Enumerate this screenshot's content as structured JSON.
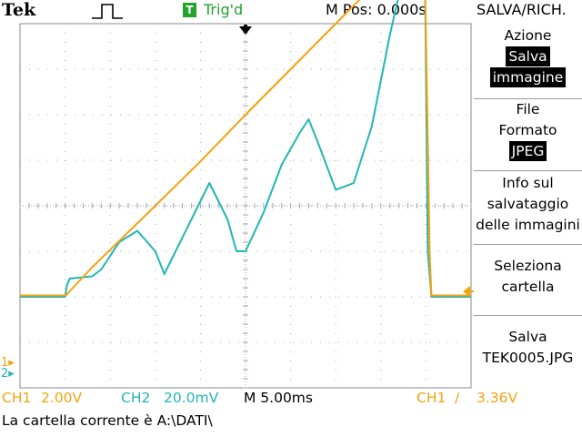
{
  "header": {
    "brand": "Tek",
    "trig_badge": "T",
    "trig_status": "Trig'd",
    "m_pos": "M Pos: 0.000s",
    "menu_title": "SALVA/RICH."
  },
  "menu": {
    "action_label": "Azione",
    "action_value_line1": "Salva",
    "action_value_line2": "immagine",
    "file_label_line1": "File",
    "file_label_line2": "Formato",
    "file_value": "JPEG",
    "info_line1": "Info sul",
    "info_line2": "salvataggio",
    "info_line3": "delle immagini",
    "select_line1": "Seleziona",
    "select_line2": "cartella",
    "save_line1": "Salva",
    "save_line2": "TEK0005.JPG"
  },
  "markers": {
    "ch1": "1",
    "ch2": "2"
  },
  "footer": {
    "ch1_label": "CH1",
    "ch1_scale": "2.00V",
    "ch2_label": "CH2",
    "ch2_scale": "20.0mV",
    "timebase": "M 5.00ms",
    "trigger_source": "CH1",
    "trigger_slope": "/",
    "trigger_level": "3.36V",
    "status": "La cartella corrente è A:\\DATI\\"
  },
  "colors": {
    "ch1": "#f5a20f",
    "ch2": "#22b5b5",
    "trigger": "#22a32e",
    "grid": "#aaaaaa"
  },
  "chart_data": {
    "type": "line",
    "divisions": {
      "x": 10,
      "y": 8
    },
    "xlim": [
      -25,
      25
    ],
    "series": [
      {
        "name": "CH1",
        "x": [
          -25,
          -20,
          -19.8,
          -19.6,
          -17,
          -10,
          -5,
          0,
          5,
          10,
          15,
          19.8,
          20.2,
          20.4,
          20.6,
          25
        ],
        "y": [
          -3.94,
          -3.94,
          -3.9,
          -3.8,
          -2.7,
          0,
          1.95,
          4.0,
          6.0,
          8.0,
          10.0,
          11.95,
          3.0,
          -2.0,
          -3.94,
          -3.94
        ]
      },
      {
        "name": "CH2",
        "x": [
          -25,
          -20,
          -19.8,
          -19.5,
          -17,
          -16,
          -14,
          -12,
          -10,
          -9,
          -8,
          -6,
          -4,
          -2,
          -1,
          0,
          2,
          4,
          6,
          7,
          8,
          10,
          12,
          14,
          16,
          18,
          19.8,
          20,
          20.2,
          20.6,
          25
        ],
        "y": [
          -40,
          -40,
          -35,
          -32,
          -31,
          -28,
          -16,
          -11,
          -20,
          -30,
          -22,
          -6,
          10,
          -6,
          -20,
          -20,
          -3,
          18,
          32,
          38,
          28,
          7,
          10,
          35,
          75,
          110,
          138,
          60,
          -20,
          -40,
          -40
        ]
      }
    ]
  }
}
